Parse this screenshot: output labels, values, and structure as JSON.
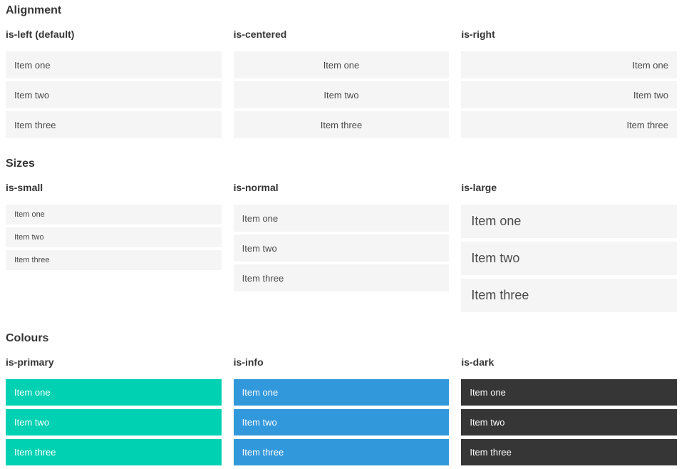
{
  "sections": [
    {
      "title": "Alignment",
      "groups": [
        {
          "label": "is-left (default)",
          "items": [
            "Item one",
            "Item two",
            "Item three"
          ]
        },
        {
          "label": "is-centered",
          "items": [
            "Item one",
            "Item two",
            "Item three"
          ]
        },
        {
          "label": "is-right",
          "items": [
            "Item one",
            "Item two",
            "Item three"
          ]
        }
      ]
    },
    {
      "title": "Sizes",
      "groups": [
        {
          "label": "is-small",
          "items": [
            "Item one",
            "Item two",
            "Item three"
          ]
        },
        {
          "label": "is-normal",
          "items": [
            "Item one",
            "Item two",
            "Item three"
          ]
        },
        {
          "label": "is-large",
          "items": [
            "Item one",
            "Item two",
            "Item three"
          ]
        }
      ]
    },
    {
      "title": "Colours",
      "groups": [
        {
          "label": "is-primary",
          "items": [
            "Item one",
            "Item two",
            "Item three"
          ]
        },
        {
          "label": "is-info",
          "items": [
            "Item one",
            "Item two",
            "Item three"
          ]
        },
        {
          "label": "is-dark",
          "items": [
            "Item one",
            "Item two",
            "Item three"
          ]
        }
      ]
    }
  ],
  "colors": {
    "primary": "#00d1b2",
    "info": "#3298dc",
    "dark": "#363636",
    "item_bg": "#f5f5f5",
    "item_text": "#4a4a4a",
    "heading_text": "#363636",
    "on_color_text": "#ffffff"
  }
}
